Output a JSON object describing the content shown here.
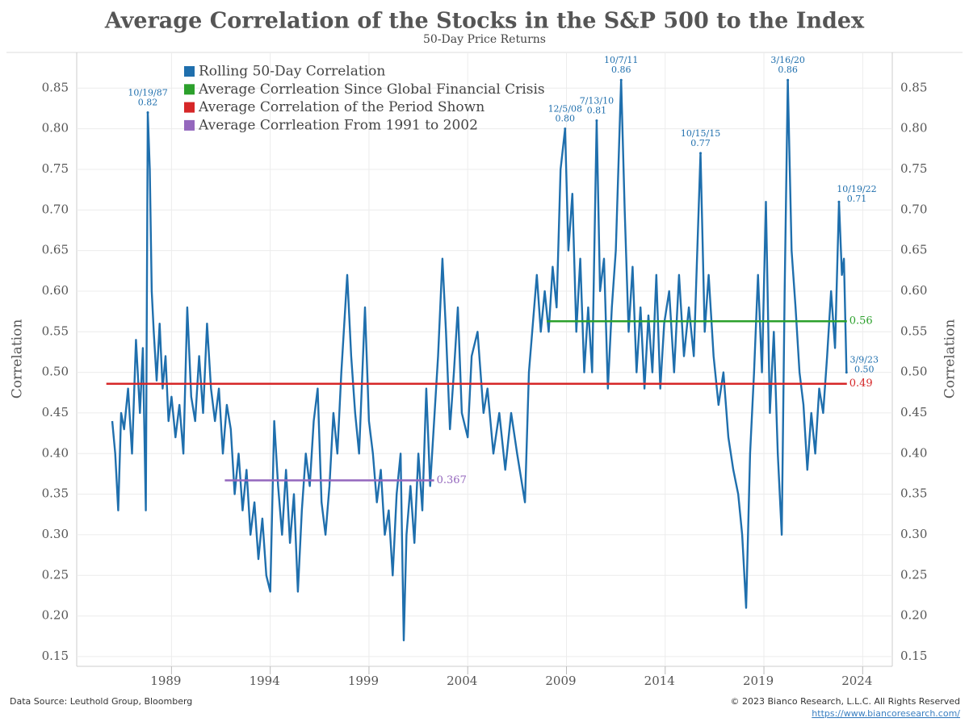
{
  "chart_data": {
    "type": "line",
    "title": "Average Correlation of the Stocks in the S&P 500 to the Index",
    "subtitle": "50-Day Price Returns",
    "y_label": "Correlation",
    "y2_label": "Correlation",
    "source": "Data Source: Leuthold Group, Bloomberg",
    "copyright": "© 2023 Bianco Research, L.L.C. All Rights Reserved",
    "url": "https://www.biancoresearch.com/",
    "xlim": [
      1984.2,
      2025.5
    ],
    "xticks": [
      1989,
      1994,
      1999,
      2004,
      2009,
      2014,
      2019,
      2024
    ],
    "ylim": [
      0.138,
      0.894
    ],
    "yticks": [
      0.15,
      {
        "value": 0.2,
        "label": "0.20"
      },
      0.25,
      {
        "value": 0.3,
        "label": "0.30"
      },
      0.35,
      {
        "value": 0.4,
        "label": "0.40"
      },
      0.45,
      {
        "value": 0.5,
        "label": "0.50"
      },
      0.55,
      {
        "value": 0.6,
        "label": "0.60"
      },
      0.65,
      {
        "value": 0.7,
        "label": "0.70"
      },
      0.75,
      {
        "value": 0.8,
        "label": "0.80"
      },
      0.85
    ],
    "grid": true,
    "series": [
      {
        "name": "Rolling 50-Day Correlation",
        "color": "#1f6fad",
        "x": [
          1986.0,
          1986.15,
          1986.3,
          1986.45,
          1986.6,
          1986.8,
          1987.0,
          1987.2,
          1987.4,
          1987.55,
          1987.7,
          1987.8,
          1987.9,
          1988.0,
          1988.1,
          1988.25,
          1988.4,
          1988.55,
          1988.7,
          1988.85,
          1989.0,
          1989.2,
          1989.4,
          1989.6,
          1989.8,
          1990.0,
          1990.2,
          1990.4,
          1990.6,
          1990.8,
          1991.0,
          1991.2,
          1991.4,
          1991.6,
          1991.8,
          1992.0,
          1992.2,
          1992.4,
          1992.6,
          1992.8,
          1993.0,
          1993.2,
          1993.4,
          1993.6,
          1993.8,
          1994.0,
          1994.2,
          1994.4,
          1994.6,
          1994.8,
          1995.0,
          1995.2,
          1995.4,
          1995.6,
          1995.8,
          1996.0,
          1996.2,
          1996.4,
          1996.6,
          1996.8,
          1997.0,
          1997.2,
          1997.4,
          1997.6,
          1997.9,
          1998.1,
          1998.3,
          1998.5,
          1998.8,
          1999.0,
          1999.2,
          1999.4,
          1999.6,
          1999.8,
          2000.0,
          2000.2,
          2000.4,
          2000.6,
          2000.76,
          2000.9,
          2001.1,
          2001.3,
          2001.5,
          2001.7,
          2001.9,
          2002.1,
          2002.3,
          2002.5,
          2002.72,
          2002.9,
          2003.1,
          2003.3,
          2003.5,
          2003.7,
          2004.0,
          2004.2,
          2004.5,
          2004.8,
          2005.0,
          2005.3,
          2005.6,
          2005.9,
          2006.2,
          2006.5,
          2006.9,
          2007.1,
          2007.3,
          2007.5,
          2007.7,
          2007.9,
          2008.1,
          2008.3,
          2008.5,
          2008.7,
          2008.93,
          2009.1,
          2009.3,
          2009.5,
          2009.7,
          2009.9,
          2010.1,
          2010.3,
          2010.53,
          2010.7,
          2010.9,
          2011.1,
          2011.3,
          2011.5,
          2011.77,
          2011.95,
          2012.15,
          2012.35,
          2012.55,
          2012.75,
          2012.95,
          2013.15,
          2013.35,
          2013.55,
          2013.75,
          2013.95,
          2014.2,
          2014.45,
          2014.7,
          2014.95,
          2015.2,
          2015.45,
          2015.79,
          2016.0,
          2016.2,
          2016.45,
          2016.7,
          2016.95,
          2017.2,
          2017.45,
          2017.7,
          2017.9,
          2018.1,
          2018.3,
          2018.5,
          2018.7,
          2018.9,
          2019.1,
          2019.3,
          2019.5,
          2019.7,
          2019.9,
          2020.05,
          2020.21,
          2020.4,
          2020.6,
          2020.8,
          2021.0,
          2021.2,
          2021.4,
          2021.6,
          2021.8,
          2022.0,
          2022.2,
          2022.4,
          2022.6,
          2022.8,
          2022.95,
          2023.05,
          2023.18
        ],
        "values": [
          0.44,
          0.4,
          0.33,
          0.45,
          0.43,
          0.48,
          0.4,
          0.54,
          0.45,
          0.53,
          0.33,
          0.82,
          0.75,
          0.6,
          0.55,
          0.49,
          0.56,
          0.48,
          0.52,
          0.44,
          0.47,
          0.42,
          0.46,
          0.4,
          0.58,
          0.47,
          0.44,
          0.52,
          0.45,
          0.56,
          0.48,
          0.44,
          0.48,
          0.4,
          0.46,
          0.43,
          0.35,
          0.4,
          0.33,
          0.38,
          0.3,
          0.34,
          0.27,
          0.32,
          0.25,
          0.23,
          0.44,
          0.36,
          0.3,
          0.38,
          0.29,
          0.35,
          0.23,
          0.33,
          0.4,
          0.36,
          0.44,
          0.48,
          0.34,
          0.3,
          0.36,
          0.45,
          0.4,
          0.5,
          0.62,
          0.52,
          0.45,
          0.4,
          0.58,
          0.44,
          0.4,
          0.34,
          0.38,
          0.3,
          0.33,
          0.25,
          0.35,
          0.4,
          0.17,
          0.3,
          0.36,
          0.29,
          0.4,
          0.33,
          0.48,
          0.36,
          0.44,
          0.52,
          0.64,
          0.55,
          0.43,
          0.5,
          0.58,
          0.45,
          0.42,
          0.52,
          0.55,
          0.45,
          0.48,
          0.4,
          0.45,
          0.38,
          0.45,
          0.4,
          0.34,
          0.5,
          0.56,
          0.62,
          0.55,
          0.6,
          0.55,
          0.63,
          0.58,
          0.75,
          0.8,
          0.65,
          0.72,
          0.55,
          0.64,
          0.5,
          0.58,
          0.5,
          0.81,
          0.6,
          0.64,
          0.48,
          0.58,
          0.65,
          0.86,
          0.7,
          0.55,
          0.63,
          0.5,
          0.58,
          0.48,
          0.57,
          0.5,
          0.62,
          0.48,
          0.56,
          0.6,
          0.5,
          0.62,
          0.52,
          0.58,
          0.52,
          0.77,
          0.55,
          0.62,
          0.52,
          0.46,
          0.5,
          0.42,
          0.38,
          0.35,
          0.3,
          0.21,
          0.4,
          0.5,
          0.62,
          0.5,
          0.71,
          0.45,
          0.55,
          0.4,
          0.3,
          0.6,
          0.86,
          0.65,
          0.58,
          0.5,
          0.46,
          0.38,
          0.45,
          0.4,
          0.48,
          0.45,
          0.52,
          0.6,
          0.53,
          0.71,
          0.62,
          0.64,
          0.5
        ]
      }
    ],
    "reference_lines": [
      {
        "name": "Average Corrleation Since Global Financial Crisis",
        "color": "#2ca02c",
        "value": 0.563,
        "value_label": "0.56",
        "x": [
          2008.0,
          2023.2
        ]
      },
      {
        "name": "Average Correlation of the Period Shown",
        "color": "#d62728",
        "value": 0.486,
        "value_label": "0.49",
        "x": [
          1985.7,
          2023.2
        ]
      },
      {
        "name": "Average Corrleation From 1991 to 2002",
        "color": "#9467bd",
        "value": 0.367,
        "value_label": "0.367",
        "x": [
          1991.7,
          2002.3
        ]
      }
    ],
    "annotations": [
      {
        "text": "10/19/87",
        "x": 1987.8,
        "value": 0.82,
        "value_label": "0.82"
      },
      {
        "text": "12/5/08",
        "x": 2008.93,
        "value": 0.8,
        "value_label": "0.80"
      },
      {
        "text": "7/13/10",
        "x": 2010.53,
        "value": 0.81,
        "value_label": "0.81"
      },
      {
        "text": "10/7/11",
        "x": 2011.77,
        "value": 0.86,
        "value_label": "0.86"
      },
      {
        "text": "10/15/15",
        "x": 2015.79,
        "value": 0.77,
        "value_label": "0.77"
      },
      {
        "text": "3/16/20",
        "x": 2020.21,
        "value": 0.86,
        "value_label": "0.86"
      },
      {
        "text": "10/19/22",
        "x": 2022.8,
        "value": 0.71,
        "value_label": "0.71"
      },
      {
        "text": "3/9/23",
        "x": 2023.18,
        "value": 0.5,
        "value_label": "0.50"
      }
    ]
  }
}
